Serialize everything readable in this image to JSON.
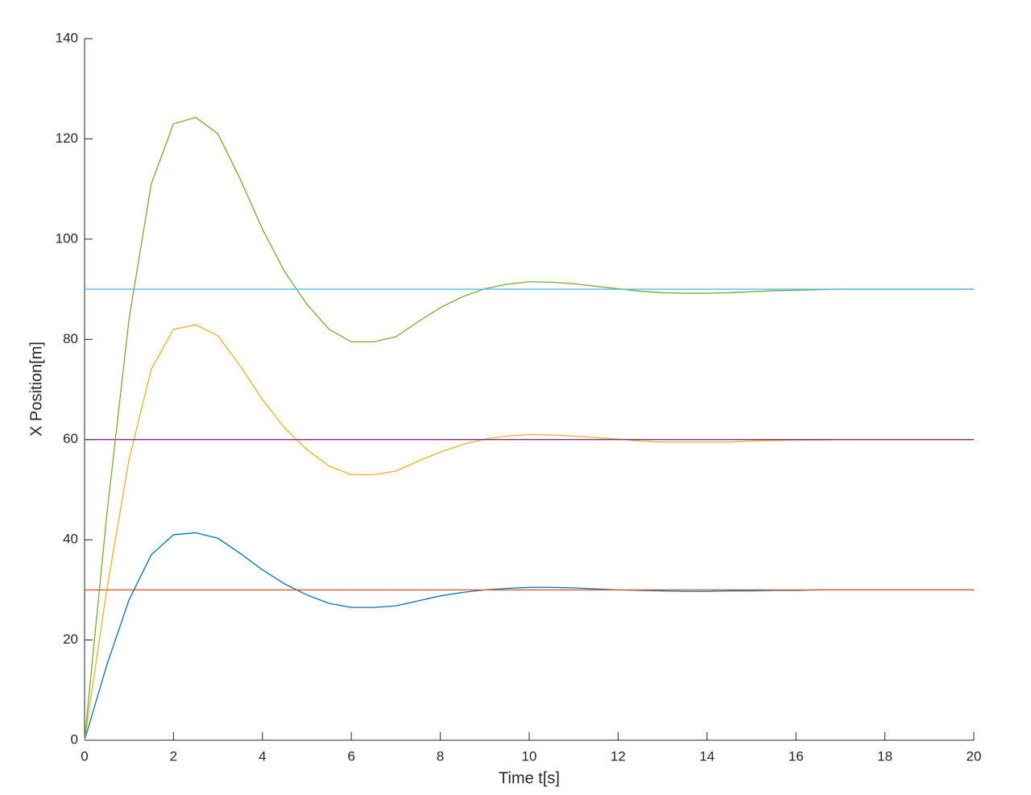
{
  "chart_data": {
    "type": "line",
    "x_label": "Time t[s]",
    "y_label": "X Position[m]",
    "x": [
      0,
      0.5,
      1,
      1.5,
      2,
      2.5,
      3,
      3.5,
      4,
      4.5,
      5,
      5.5,
      6,
      6.5,
      7,
      7.5,
      8,
      8.5,
      9,
      9.5,
      10,
      10.5,
      11,
      11.5,
      12,
      12.5,
      13,
      13.5,
      14,
      14.5,
      15,
      15.5,
      16,
      16.5,
      17,
      17.5,
      18,
      18.5,
      19,
      19.5,
      20
    ],
    "series": [
      {
        "color": "#0072BD",
        "values": [
          0,
          15,
          28,
          37,
          41,
          41.4,
          40.3,
          37.3,
          34,
          31.2,
          29,
          27.3,
          26.5,
          26.5,
          26.8,
          27.8,
          28.8,
          29.5,
          30,
          30.3,
          30.5,
          30.5,
          30.4,
          30.2,
          30,
          29.9,
          29.8,
          29.7,
          29.7,
          29.8,
          29.8,
          29.9,
          29.9,
          30,
          30,
          30,
          30,
          30,
          30,
          30,
          30
        ]
      },
      {
        "color": "#D95319",
        "x": [
          0,
          20
        ],
        "values": [
          30,
          30
        ]
      },
      {
        "color": "#EDB120",
        "values": [
          0,
          30,
          56,
          74,
          82,
          82.9,
          80.7,
          74.7,
          68,
          62.3,
          58,
          54.7,
          53,
          53,
          53.7,
          55.7,
          57.5,
          59,
          60.1,
          60.7,
          61,
          60.9,
          60.7,
          60.4,
          60.1,
          59.7,
          59.5,
          59.5,
          59.5,
          59.5,
          59.7,
          59.8,
          59.9,
          59.9,
          60,
          60,
          60,
          60,
          60,
          60,
          60
        ]
      },
      {
        "color": "#7E2F8E",
        "x": [
          0,
          20
        ],
        "values": [
          60,
          60
        ]
      },
      {
        "color": "#77AC30",
        "values": [
          0,
          45,
          84,
          111,
          123,
          124.3,
          121,
          112,
          102,
          93.5,
          87,
          82,
          79.5,
          79.5,
          80.5,
          83.5,
          86.3,
          88.5,
          90.1,
          91,
          91.5,
          91.4,
          91.1,
          90.6,
          90.1,
          89.6,
          89.3,
          89.2,
          89.2,
          89.3,
          89.5,
          89.7,
          89.8,
          89.9,
          90,
          90,
          90,
          90,
          90,
          90,
          90
        ]
      },
      {
        "color": "#4DBEEE",
        "x": [
          0,
          20
        ],
        "values": [
          90,
          90
        ]
      }
    ],
    "xlim": [
      0,
      20
    ],
    "xticks": [
      0,
      2,
      4,
      6,
      8,
      10,
      12,
      14,
      16,
      18,
      20
    ],
    "ylim": [
      0,
      140
    ],
    "yticks": [
      0,
      20,
      40,
      60,
      80,
      100,
      120,
      140
    ]
  }
}
